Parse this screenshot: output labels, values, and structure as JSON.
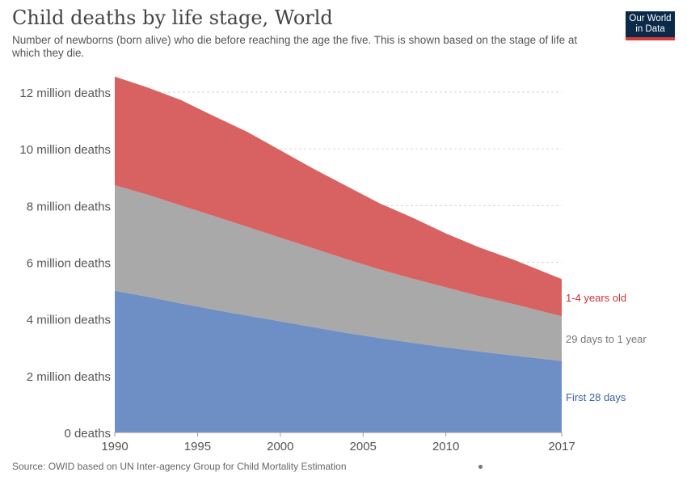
{
  "header": {
    "title": "Child deaths by life stage, World",
    "subtitle": "Number of newborns (born alive) who die before reaching the age the five. This is shown based on the stage of life at which they die.",
    "logo_line1": "Our World",
    "logo_line2": "in Data"
  },
  "footer": {
    "source": "Source: OWID based on UN Inter-agency Group for Child Mortality Estimation"
  },
  "colors": {
    "first_28_days": "#6d8fc6",
    "days_29_to_1_year": "#a9a9a9",
    "years_1_4": "#d86262",
    "label_first_28_days": "#3f63a5",
    "label_29_days": "#777777",
    "label_1_4": "#c8343a"
  },
  "chart_data": {
    "type": "area",
    "stacked": true,
    "x": [
      1990,
      1992,
      1994,
      1996,
      1998,
      2000,
      2002,
      2004,
      2006,
      2008,
      2010,
      2012,
      2014,
      2017
    ],
    "xticks": [
      "1990",
      "1995",
      "2000",
      "2005",
      "2010",
      "2017"
    ],
    "ylim": [
      0,
      12000000
    ],
    "yticks": [
      "0 deaths",
      "2 million deaths",
      "4 million deaths",
      "6 million deaths",
      "8 million deaths",
      "10 million deaths",
      "12 million deaths"
    ],
    "grid": true,
    "series": [
      {
        "name": "First 28 days",
        "values": [
          5000000,
          4780000,
          4550000,
          4330000,
          4120000,
          3920000,
          3710000,
          3510000,
          3330000,
          3160000,
          3000000,
          2860000,
          2720000,
          2520000
        ]
      },
      {
        "name": "29 days to 1 year",
        "values": [
          3720000,
          3600000,
          3450000,
          3300000,
          3130000,
          2950000,
          2780000,
          2600000,
          2420000,
          2260000,
          2120000,
          1950000,
          1820000,
          1580000
        ]
      },
      {
        "name": "1-4 years old",
        "values": [
          3830000,
          3780000,
          3720000,
          3520000,
          3350000,
          3080000,
          2810000,
          2580000,
          2330000,
          2150000,
          1900000,
          1720000,
          1570000,
          1310000
        ]
      }
    ]
  }
}
